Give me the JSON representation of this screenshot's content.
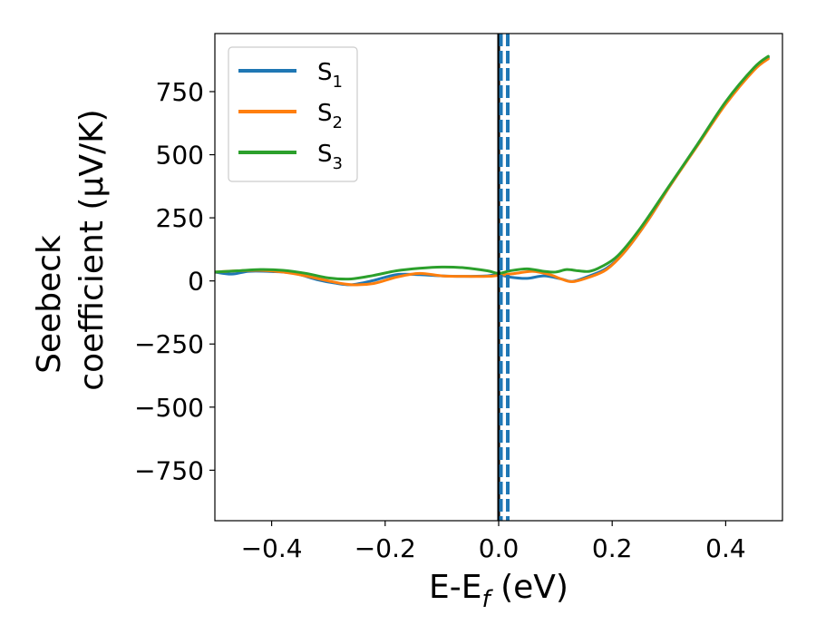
{
  "chart_data": {
    "type": "line",
    "xlabel": "E-E",
    "xlabel_sub": "f",
    "xlabel_unit": " (eV)",
    "ylabel_line1": "Seebeck",
    "ylabel_line2": "coefficient  (μV/K)",
    "xlim": [
      -0.5,
      0.5
    ],
    "ylim": [
      -950,
      980
    ],
    "xticks": [
      -0.4,
      -0.2,
      0.0,
      0.2,
      0.4
    ],
    "xtick_labels": [
      "−0.4",
      "−0.2",
      "0.0",
      "0.2",
      "0.4"
    ],
    "yticks": [
      750,
      500,
      250,
      0,
      -250,
      -500,
      -750
    ],
    "ytick_labels": [
      "750",
      "500",
      "250",
      "0",
      "−250",
      "−500",
      "−750"
    ],
    "grid": false,
    "legend_position": "top-left",
    "vertical_lines": [
      {
        "x": 0.0,
        "style": "solid",
        "color": "#000000"
      },
      {
        "x": 0.004,
        "style": "dashed",
        "color": "#1f77b4"
      },
      {
        "x": 0.016,
        "style": "dashed",
        "color": "#1f77b4"
      }
    ],
    "series": [
      {
        "name": "S",
        "sub": "1",
        "color": "#1f77b4",
        "x": [
          -0.5,
          -0.47,
          -0.44,
          -0.4,
          -0.36,
          -0.32,
          -0.29,
          -0.26,
          -0.22,
          -0.18,
          -0.14,
          -0.1,
          -0.06,
          -0.02,
          0.0,
          0.02,
          0.05,
          0.08,
          0.11,
          0.13,
          0.16,
          0.19,
          0.22,
          0.26,
          0.3,
          0.35,
          0.4,
          0.45,
          0.475
        ],
        "values": [
          35,
          27,
          38,
          37,
          30,
          5,
          -8,
          -15,
          2,
          25,
          25,
          20,
          18,
          20,
          25,
          15,
          10,
          20,
          8,
          -2,
          20,
          50,
          110,
          230,
          370,
          540,
          705,
          840,
          885
        ]
      },
      {
        "name": "S",
        "sub": "2",
        "color": "#ff7f0e",
        "x": [
          -0.5,
          -0.46,
          -0.42,
          -0.38,
          -0.34,
          -0.3,
          -0.26,
          -0.22,
          -0.18,
          -0.14,
          -0.1,
          -0.06,
          -0.02,
          0.0,
          0.03,
          0.06,
          0.09,
          0.11,
          0.13,
          0.16,
          0.19,
          0.22,
          0.26,
          0.3,
          0.35,
          0.4,
          0.45,
          0.475
        ],
        "values": [
          35,
          40,
          42,
          35,
          20,
          0,
          -15,
          -10,
          15,
          30,
          20,
          18,
          18,
          22,
          30,
          38,
          25,
          8,
          -3,
          15,
          45,
          110,
          230,
          370,
          535,
          700,
          835,
          880
        ]
      },
      {
        "name": "S",
        "sub": "3",
        "color": "#2ca02c",
        "x": [
          -0.5,
          -0.46,
          -0.42,
          -0.38,
          -0.34,
          -0.3,
          -0.26,
          -0.22,
          -0.18,
          -0.14,
          -0.1,
          -0.06,
          -0.02,
          0.0,
          0.02,
          0.05,
          0.08,
          0.1,
          0.12,
          0.14,
          0.16,
          0.18,
          0.21,
          0.25,
          0.3,
          0.35,
          0.4,
          0.45,
          0.475
        ],
        "values": [
          35,
          40,
          45,
          42,
          30,
          12,
          8,
          22,
          40,
          50,
          55,
          52,
          40,
          30,
          40,
          48,
          38,
          35,
          45,
          40,
          38,
          55,
          100,
          210,
          375,
          540,
          710,
          845,
          890
        ]
      }
    ]
  }
}
